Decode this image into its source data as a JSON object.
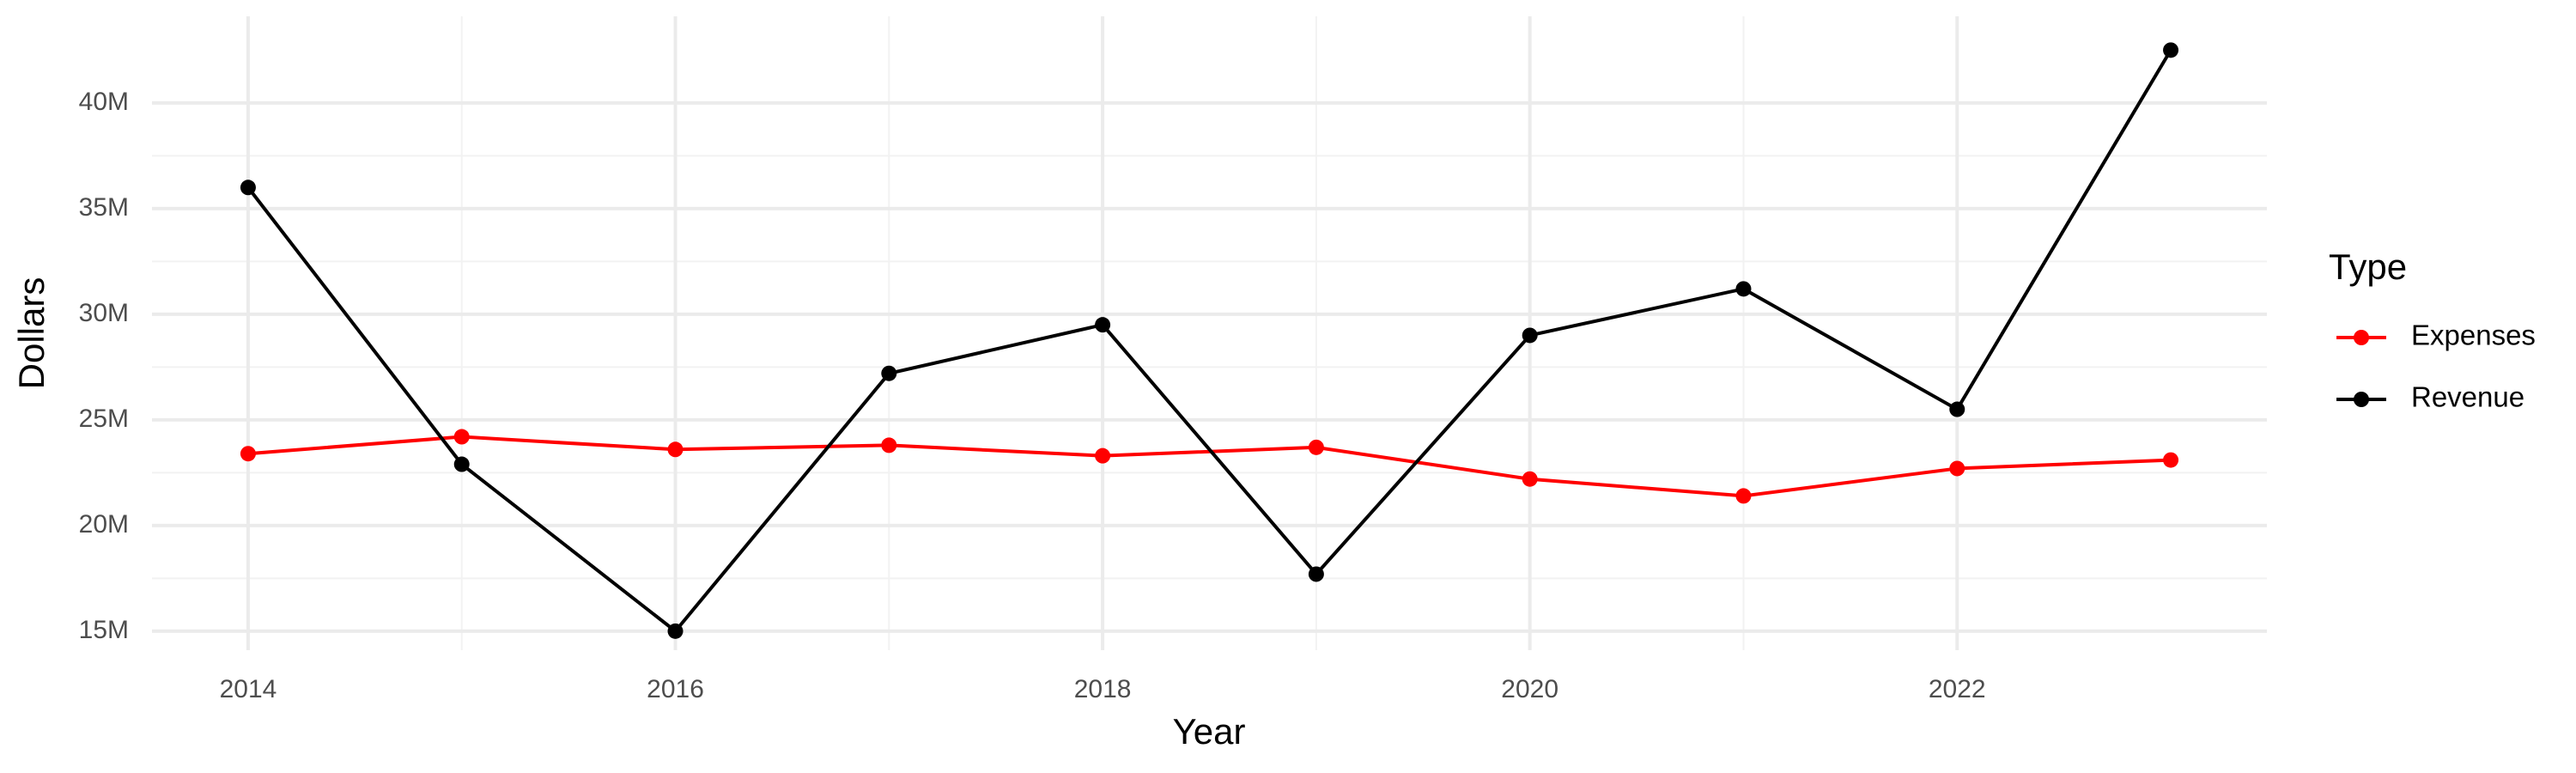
{
  "chart_data": {
    "type": "line",
    "x_label": "Year",
    "y_label": "Dollars",
    "legend_title": "Type",
    "x": [
      2014,
      2015,
      2016,
      2017,
      2018,
      2019,
      2020,
      2021,
      2022,
      2023
    ],
    "series": [
      {
        "name": "Expenses",
        "color": "#ff0000",
        "values": [
          23400000,
          24200000,
          23600000,
          23800000,
          23300000,
          23700000,
          22200000,
          21400000,
          22700000,
          23100000
        ]
      },
      {
        "name": "Revenue",
        "color": "#000000",
        "values": [
          36000000,
          22900000,
          15000000,
          27200000,
          29500000,
          17700000,
          29000000,
          31200000,
          25500000,
          42500000
        ]
      }
    ],
    "xlim": [
      2013.55,
      2023.45
    ],
    "xticks": [
      2014,
      2016,
      2018,
      2020,
      2022
    ],
    "ylim": [
      14100000,
      44100000
    ],
    "yticks": [
      {
        "value": 15000000,
        "label": "15M"
      },
      {
        "value": 20000000,
        "label": "20M"
      },
      {
        "value": 25000000,
        "label": "25M"
      },
      {
        "value": 30000000,
        "label": "30M"
      },
      {
        "value": 35000000,
        "label": "35M"
      },
      {
        "value": 40000000,
        "label": "40M"
      }
    ],
    "grid": true,
    "legend": "right"
  }
}
